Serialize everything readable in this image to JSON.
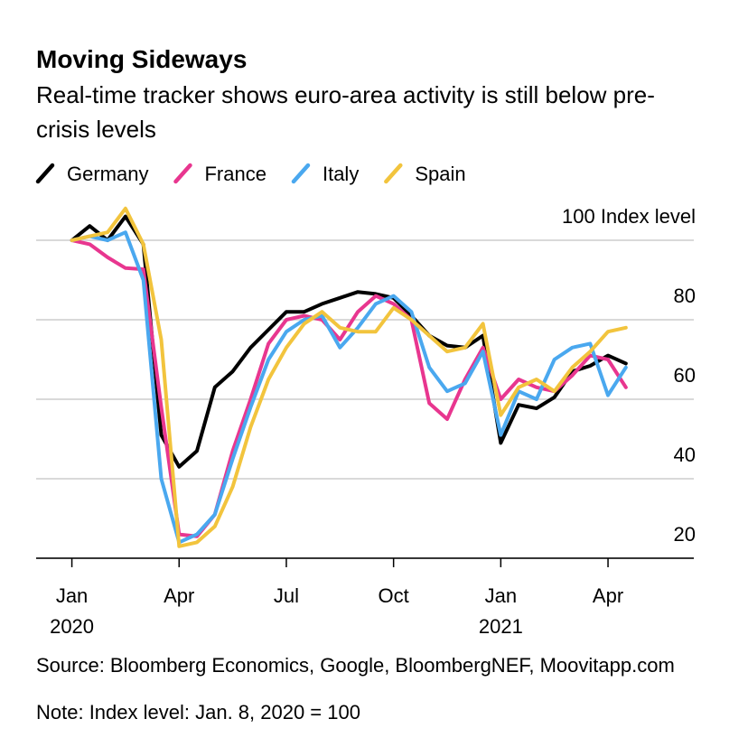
{
  "chart_data": {
    "type": "line",
    "title": "Moving Sideways",
    "subtitle": "Real-time tracker shows euro-area activity is still below pre-crisis levels",
    "source": "Source: Bloomberg Economics, Google, BloombergNEF, Moovitapp.com",
    "note": "Note: Index level: Jan. 8, 2020 = 100",
    "x": [
      0,
      0.5,
      1,
      1.5,
      2,
      2.5,
      3,
      3.5,
      4,
      4.5,
      5,
      5.5,
      6,
      6.5,
      7,
      7.5,
      8,
      8.5,
      9,
      9.5,
      10,
      10.5,
      11,
      11.5,
      12,
      12.5,
      13,
      13.5,
      14,
      14.5,
      15,
      15.5
    ],
    "series": [
      {
        "name": "Germany",
        "color": "#000000",
        "values": [
          100,
          103.6,
          100,
          106,
          99,
          51,
          43,
          47,
          63,
          67,
          73,
          77.5,
          82,
          82,
          84,
          85.5,
          87,
          86.5,
          85.5,
          81,
          76,
          73.5,
          73,
          76,
          49,
          58.6,
          57.7,
          60.5,
          67,
          68.4,
          71,
          69
        ]
      },
      {
        "name": "France",
        "color": "#e8368f",
        "values": [
          100,
          99,
          95.7,
          93,
          92.7,
          58,
          26,
          25.5,
          31,
          47,
          60,
          74,
          80,
          81,
          80,
          75,
          82,
          86,
          84,
          80,
          59,
          55,
          65,
          73,
          60,
          65,
          63,
          62,
          66,
          71,
          70,
          63
        ]
      },
      {
        "name": "Italy",
        "color": "#4aa8ef",
        "values": [
          100,
          101,
          100,
          102,
          90,
          40,
          24,
          26,
          31,
          45,
          58,
          70,
          77,
          80,
          81,
          73,
          78,
          84,
          86,
          82,
          68,
          62,
          64,
          72,
          51,
          62,
          60,
          70,
          73,
          74,
          61,
          68
        ]
      },
      {
        "name": "Spain",
        "color": "#f2c43d",
        "values": [
          100,
          101,
          102,
          108,
          99,
          75,
          23,
          24,
          28,
          38,
          53,
          65,
          73,
          79,
          82,
          78,
          77,
          77,
          83,
          80,
          76,
          72,
          73,
          79,
          56,
          63,
          65,
          62,
          68,
          72,
          77,
          78
        ]
      }
    ],
    "xlim": [
      -1,
      17.4
    ],
    "xticks": [
      {
        "value": 0,
        "label": "Jan"
      },
      {
        "value": 3,
        "label": "Apr"
      },
      {
        "value": 6,
        "label": "Jul"
      },
      {
        "value": 9,
        "label": "Oct"
      },
      {
        "value": 12,
        "label": "Jan"
      },
      {
        "value": 15,
        "label": "Apr"
      }
    ],
    "year_labels": [
      {
        "value": 0,
        "label": "2020"
      },
      {
        "value": 12,
        "label": "2021"
      }
    ],
    "ylim": [
      20,
      110
    ],
    "yticks": [
      {
        "value": 100,
        "label": "100 Index level"
      },
      80,
      60,
      40,
      20
    ],
    "grid": true
  }
}
